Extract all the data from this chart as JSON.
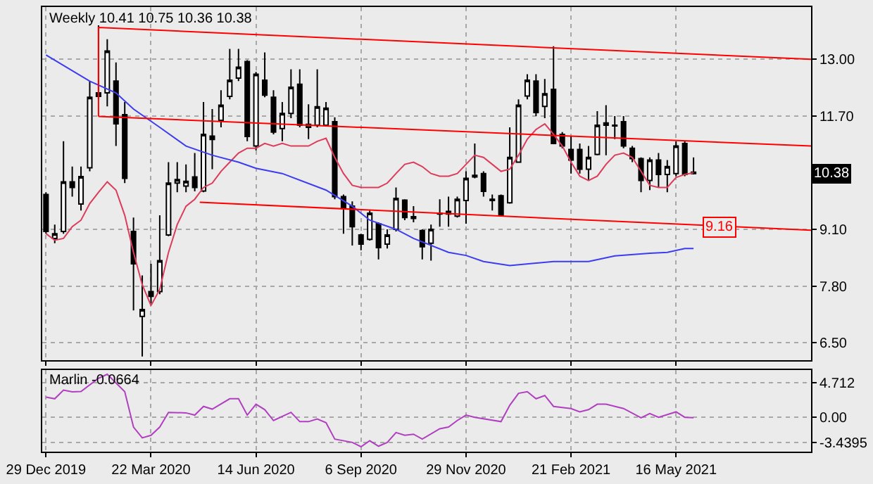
{
  "chart_data": [
    {
      "type": "candlestick",
      "title": "Weekly 10.41 10.75 10.36 10.38",
      "color": "#000000",
      "x": [
        "2019-12-29",
        "2020-01-05",
        "2020-01-12",
        "2020-01-19",
        "2020-01-26",
        "2020-02-02",
        "2020-02-09",
        "2020-02-16",
        "2020-02-23",
        "2020-03-01",
        "2020-03-08",
        "2020-03-15",
        "2020-03-22",
        "2020-03-29",
        "2020-04-05",
        "2020-04-12",
        "2020-04-19",
        "2020-04-26",
        "2020-05-03",
        "2020-05-10",
        "2020-05-17",
        "2020-05-24",
        "2020-05-31",
        "2020-06-07",
        "2020-06-14",
        "2020-06-21",
        "2020-06-28",
        "2020-07-05",
        "2020-07-12",
        "2020-07-19",
        "2020-07-26",
        "2020-08-02",
        "2020-08-09",
        "2020-08-16",
        "2020-08-23",
        "2020-08-30",
        "2020-09-06",
        "2020-09-13",
        "2020-09-20",
        "2020-09-27",
        "2020-10-04",
        "2020-10-11",
        "2020-10-18",
        "2020-10-25",
        "2020-11-01",
        "2020-11-08",
        "2020-11-15",
        "2020-11-22",
        "2020-11-29",
        "2020-12-06",
        "2020-12-13",
        "2020-12-20",
        "2020-12-27",
        "2021-01-03",
        "2021-01-10",
        "2021-01-17",
        "2021-01-24",
        "2021-01-31",
        "2021-02-07",
        "2021-02-14",
        "2021-02-21",
        "2021-02-28",
        "2021-03-07",
        "2021-03-14",
        "2021-03-21",
        "2021-03-28",
        "2021-04-04",
        "2021-04-11",
        "2021-04-18",
        "2021-04-25",
        "2021-05-02",
        "2021-05-09",
        "2021-05-16",
        "2021-05-23",
        "2021-05-30"
      ],
      "ohlc": [
        [
          9.9,
          9.95,
          9.0,
          9.05
        ],
        [
          8.89,
          9.21,
          8.78,
          9.0
        ],
        [
          9.05,
          11.12,
          9.0,
          10.19
        ],
        [
          10.19,
          10.54,
          9.85,
          10.06
        ],
        [
          9.68,
          10.54,
          9.53,
          10.31
        ],
        [
          10.51,
          12.5,
          10.43,
          12.13
        ],
        [
          12.23,
          13.78,
          12.08,
          12.15
        ],
        [
          12.23,
          13.46,
          11.92,
          13.19
        ],
        [
          12.5,
          12.93,
          11.01,
          11.52
        ],
        [
          11.73,
          12.02,
          10.16,
          10.27
        ],
        [
          9.05,
          9.37,
          7.24,
          8.31
        ],
        [
          7.1,
          8.04,
          6.18,
          7.26
        ],
        [
          7.67,
          8.31,
          7.4,
          7.56
        ],
        [
          7.67,
          9.42,
          7.61,
          8.38
        ],
        [
          8.97,
          10.64,
          8.94,
          10.16
        ],
        [
          10.16,
          10.64,
          9.95,
          10.24
        ],
        [
          10.09,
          10.59,
          9.95,
          10.2
        ],
        [
          10.3,
          10.85,
          9.97,
          10.06
        ],
        [
          9.98,
          12.02,
          9.95,
          11.28
        ],
        [
          11.24,
          11.86,
          10.48,
          11.16
        ],
        [
          11.6,
          12.29,
          11.44,
          11.95
        ],
        [
          12.15,
          13.24,
          12.08,
          12.52
        ],
        [
          12.57,
          13.24,
          12.5,
          12.82
        ],
        [
          12.95,
          12.98,
          11.12,
          11.23
        ],
        [
          11.01,
          12.71,
          10.91,
          12.66
        ],
        [
          12.52,
          13.16,
          12.13,
          12.18
        ],
        [
          12.13,
          12.29,
          11.28,
          11.33
        ],
        [
          11.41,
          12.02,
          11.12,
          11.76
        ],
        [
          11.76,
          12.77,
          11.65,
          12.36
        ],
        [
          12.43,
          12.77,
          11.44,
          11.49
        ],
        [
          11.44,
          11.97,
          11.17,
          11.51
        ],
        [
          11.49,
          12.77,
          11.44,
          11.91
        ],
        [
          11.49,
          12.02,
          11.46,
          11.88
        ],
        [
          11.57,
          11.67,
          9.79,
          9.85
        ],
        [
          9.85,
          9.9,
          9.0,
          9.58
        ],
        [
          9.63,
          9.74,
          8.73,
          9.16
        ],
        [
          8.97,
          9.0,
          8.62,
          8.76
        ],
        [
          8.87,
          9.53,
          8.84,
          9.47
        ],
        [
          9.23,
          9.26,
          8.41,
          8.68
        ],
        [
          8.76,
          9.1,
          8.66,
          8.97
        ],
        [
          9.1,
          10.06,
          9.05,
          9.81
        ],
        [
          9.77,
          9.79,
          9.31,
          9.37
        ],
        [
          9.35,
          9.63,
          9.26,
          9.39
        ],
        [
          9.07,
          9.1,
          8.41,
          8.7
        ],
        [
          8.78,
          9.21,
          8.38,
          9.1
        ],
        [
          9.45,
          9.79,
          9.16,
          9.47
        ],
        [
          9.51,
          9.85,
          9.16,
          9.45
        ],
        [
          9.4,
          9.85,
          9.37,
          9.79
        ],
        [
          9.76,
          10.43,
          9.23,
          10.27
        ],
        [
          10.3,
          11.07,
          10.27,
          10.34
        ],
        [
          10.38,
          10.43,
          9.85,
          9.97
        ],
        [
          9.76,
          9.9,
          9.53,
          9.79
        ],
        [
          9.87,
          9.9,
          9.4,
          9.42
        ],
        [
          9.71,
          11.44,
          9.69,
          10.75
        ],
        [
          10.64,
          12.08,
          10.64,
          11.95
        ],
        [
          12.16,
          12.66,
          12.08,
          12.52
        ],
        [
          12.5,
          12.66,
          11.7,
          11.78
        ],
        [
          11.92,
          12.55,
          11.65,
          12.21
        ],
        [
          12.31,
          13.3,
          11.07,
          11.07
        ],
        [
          11.28,
          11.33,
          10.96,
          11.01
        ],
        [
          10.93,
          11.23,
          10.38,
          10.69
        ],
        [
          10.93,
          11.07,
          10.38,
          10.48
        ],
        [
          10.48,
          11.01,
          10.22,
          10.75
        ],
        [
          10.82,
          11.81,
          10.8,
          11.49
        ],
        [
          11.49,
          11.95,
          10.8,
          11.54
        ],
        [
          11.49,
          11.7,
          11.17,
          11.47
        ],
        [
          11.57,
          11.7,
          10.96,
          11.01
        ],
        [
          10.96,
          11.01,
          10.64,
          10.72
        ],
        [
          10.72,
          10.75,
          9.95,
          10.22
        ],
        [
          10.22,
          10.75,
          10.0,
          10.69
        ],
        [
          10.69,
          10.85,
          10.06,
          10.36
        ],
        [
          10.36,
          10.69,
          9.95,
          10.54
        ],
        [
          10.38,
          11.12,
          10.32,
          11.01
        ],
        [
          11.07,
          11.12,
          10.32,
          10.36
        ],
        [
          10.41,
          10.75,
          10.36,
          10.38
        ]
      ],
      "series": [
        {
          "type": "line",
          "color": "#dc3c5a",
          "values": [
            9.0,
            8.85,
            8.89,
            9.16,
            9.31,
            9.69,
            9.95,
            10.19,
            10.0,
            9.42,
            8.57,
            7.83,
            7.35,
            7.72,
            8.57,
            9.21,
            9.63,
            9.79,
            10.06,
            10.16,
            10.43,
            10.64,
            10.85,
            10.96,
            10.96,
            11.07,
            11.01,
            11.07,
            11.01,
            11.01,
            11.01,
            11.12,
            11.19,
            10.75,
            10.38,
            10.11,
            10.06,
            10.06,
            10.06,
            10.16,
            10.38,
            10.59,
            10.64,
            10.54,
            10.38,
            10.32,
            10.32,
            10.38,
            10.59,
            10.8,
            10.75,
            10.59,
            10.43,
            10.48,
            10.8,
            11.17,
            11.39,
            11.52,
            11.28,
            11.01,
            10.64,
            10.32,
            10.22,
            10.32,
            10.59,
            10.8,
            10.85,
            10.75,
            10.43,
            10.11,
            10.06,
            10.06,
            10.29,
            10.36,
            10.4
          ]
        },
        {
          "type": "line",
          "color": "#3c3cf0",
          "x": [
            "2019-12-29",
            "2020-02-02",
            "2020-02-23",
            "2020-03-08",
            "2020-03-29",
            "2020-04-19",
            "2020-05-10",
            "2020-05-31",
            "2020-06-14",
            "2020-07-05",
            "2020-08-09",
            "2020-08-30",
            "2020-09-13",
            "2020-10-04",
            "2020-10-18",
            "2020-11-15",
            "2020-11-29",
            "2020-12-13",
            "2021-01-03",
            "2021-02-07",
            "2021-03-07",
            "2021-03-28",
            "2021-04-25",
            "2021-05-09",
            "2021-05-23",
            "2021-05-30"
          ],
          "values": [
            13.1,
            12.5,
            12.23,
            11.86,
            11.44,
            11.01,
            10.8,
            10.64,
            10.5,
            10.38,
            10.0,
            9.63,
            9.31,
            9.1,
            8.89,
            8.57,
            8.5,
            8.36,
            8.27,
            8.36,
            8.36,
            8.49,
            8.55,
            8.57,
            8.66,
            8.66
          ]
        },
        {
          "type": "line",
          "color": "#ff0000",
          "x": [
            "2020-02-09",
            "2020-02-09",
            "2021-09-01"
          ],
          "values": [
            11.69,
            13.73,
            13.0
          ]
        },
        {
          "type": "line",
          "color": "#ff0000",
          "x": [
            "2020-02-09",
            "2021-09-01"
          ],
          "values": [
            11.69,
            11.01
          ]
        },
        {
          "type": "line",
          "color": "#ff0000",
          "x": [
            "2020-04-30",
            "2021-09-01"
          ],
          "values": [
            9.72,
            9.08
          ]
        }
      ],
      "annotations": [
        {
          "text": "9.16",
          "x": "2021-06-20",
          "y": 9.16
        },
        {
          "text": "10.38",
          "y": 10.38
        }
      ],
      "xlim": [
        "2019-12-26",
        "2021-09-01"
      ],
      "xticks": [
        {
          "value": "2019-12-29",
          "label": null
        },
        {
          "value": "2020-03-22",
          "label": null
        },
        {
          "value": "2020-06-14",
          "label": null
        },
        {
          "value": "2020-09-06",
          "label": null
        },
        {
          "value": "2020-11-29",
          "label": null
        },
        {
          "value": "2021-02-21",
          "label": null
        },
        {
          "value": "2021-05-16",
          "label": null
        }
      ],
      "ylim": [
        6.1,
        14.2
      ],
      "yticks": [
        {
          "value": 13,
          "label": "13.00"
        },
        {
          "value": 11.7,
          "label": "11.70"
        },
        {
          "value": 9.1,
          "label": "9.10"
        },
        {
          "value": 7.8,
          "label": "7.80"
        },
        {
          "value": 6.5,
          "label": "6.50"
        }
      ],
      "grid": true,
      "tick_labels": "y"
    },
    {
      "type": "line",
      "title": "Marlin -0.0664",
      "color": "#b040c0",
      "x": [
        "2019-12-29",
        "2020-01-05",
        "2020-01-12",
        "2020-01-19",
        "2020-01-26",
        "2020-02-09",
        "2020-02-16",
        "2020-03-01",
        "2020-03-08",
        "2020-03-15",
        "2020-03-22",
        "2020-03-29",
        "2020-04-05",
        "2020-04-19",
        "2020-04-26",
        "2020-05-03",
        "2020-05-10",
        "2020-05-24",
        "2020-05-31",
        "2020-06-07",
        "2020-06-14",
        "2020-06-21",
        "2020-06-28",
        "2020-07-12",
        "2020-07-19",
        "2020-07-26",
        "2020-08-02",
        "2020-08-09",
        "2020-08-16",
        "2020-08-30",
        "2020-09-06",
        "2020-09-13",
        "2020-09-20",
        "2020-09-27",
        "2020-10-04",
        "2020-10-11",
        "2020-10-18",
        "2020-10-25",
        "2020-11-08",
        "2020-11-15",
        "2020-11-22",
        "2020-11-29",
        "2020-12-06",
        "2020-12-27",
        "2021-01-03",
        "2021-01-10",
        "2021-01-17",
        "2021-01-24",
        "2021-01-31",
        "2021-02-07",
        "2021-02-21",
        "2021-02-28",
        "2021-03-07",
        "2021-03-14",
        "2021-03-21",
        "2021-04-04",
        "2021-04-18",
        "2021-04-25",
        "2021-05-02",
        "2021-05-16",
        "2021-05-23",
        "2021-05-30"
      ],
      "values": [
        2.74,
        2.52,
        3.7,
        3.45,
        3.5,
        5.3,
        5.85,
        3.48,
        -1.33,
        -2.8,
        -2.45,
        -1.33,
        0.67,
        0.6,
        0.3,
        1.48,
        1.11,
        2.52,
        2.52,
        0.3,
        1.78,
        1.04,
        -0.44,
        0.67,
        -0.59,
        -0.59,
        -0.22,
        -0.74,
        -2.96,
        -3.41,
        -4.0,
        -3.19,
        -3.93,
        -3.41,
        -2.07,
        -2.45,
        -2.3,
        -2.96,
        -1.56,
        -1.33,
        -0.44,
        0.3,
        0.0,
        -0.59,
        1.63,
        3.26,
        3.48,
        2.52,
        2.96,
        1.48,
        1.19,
        0.74,
        1.04,
        1.78,
        1.78,
        1.19,
        -0.07,
        0.52,
        0.0,
        0.74,
        0.0,
        -0.0664
      ],
      "xlim": [
        "2019-12-26",
        "2021-09-01"
      ],
      "xticks": [
        {
          "value": "2019-12-29",
          "label": "29 Dec 2019"
        },
        {
          "value": "2020-03-22",
          "label": "22 Mar 2020"
        },
        {
          "value": "2020-06-14",
          "label": "14 Jun 2020"
        },
        {
          "value": "2020-09-06",
          "label": "6 Sep 2020"
        },
        {
          "value": "2020-11-29",
          "label": "29 Nov 2020"
        },
        {
          "value": "2021-02-21",
          "label": "21 Feb 2021"
        },
        {
          "value": "2021-05-16",
          "label": "16 May 2021"
        }
      ],
      "ylim": [
        -4.67,
        6.45
      ],
      "yticks": [
        4.712,
        {
          "value": 0,
          "label": "0.00"
        },
        -3.4395
      ],
      "grid": true
    }
  ]
}
